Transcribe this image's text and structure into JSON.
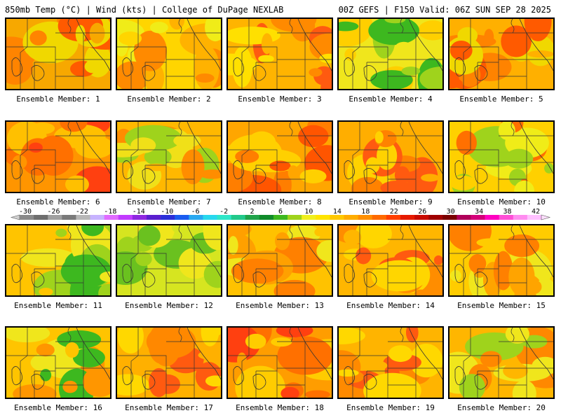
{
  "header": {
    "left_title": "850mb Temp (°C) | Wind (kts) | College of DuPage NEXLAB",
    "right_title": "00Z GEFS | F150 Valid: 06Z SUN SEP 28 2025"
  },
  "colorbar": {
    "tick_labels": [
      "-30",
      "-26",
      "-22",
      "-18",
      "-14",
      "-10",
      "-6",
      "-2",
      "2",
      "6",
      "10",
      "14",
      "18",
      "22",
      "26",
      "30",
      "34",
      "38",
      "42"
    ],
    "colors": [
      "#8a8a8a",
      "#6e6e6e",
      "#a0a0a0",
      "#7a7a7a",
      "#b7b7b7",
      "#c7b3ff",
      "#e06bff",
      "#c23bff",
      "#8f28e0",
      "#5a1fcf",
      "#2b2fd9",
      "#1a5cf0",
      "#29a8f0",
      "#28d8ee",
      "#2ee6c8",
      "#22c98a",
      "#1fa34a",
      "#108b2a",
      "#3db81f",
      "#9fd31c",
      "#f0ef1e",
      "#ffe400",
      "#ffc800",
      "#ffad00",
      "#ff8f00",
      "#ff6a00",
      "#ff3f00",
      "#e61a00",
      "#c80a00",
      "#a00000",
      "#7a0000",
      "#b0005a",
      "#d4007a",
      "#ff00c0",
      "#ff4fd6",
      "#ff8cf0",
      "#ffc0ff"
    ]
  },
  "panels": [
    {
      "label": "Ensemble Member: 1",
      "palette": [
        "#f7a800",
        "#ff8400",
        "#f0d800",
        "#ff5a00"
      ]
    },
    {
      "label": "Ensemble Member: 2",
      "palette": [
        "#ffd500",
        "#ffb200",
        "#f0ec18",
        "#ff8a00"
      ]
    },
    {
      "label": "Ensemble Member: 3",
      "palette": [
        "#ffb400",
        "#ff8a00",
        "#ffe000",
        "#ff5a10"
      ]
    },
    {
      "label": "Ensemble Member: 4",
      "palette": [
        "#f0e61c",
        "#ffcf00",
        "#9fd31c",
        "#3db81f"
      ]
    },
    {
      "label": "Ensemble Member: 5",
      "palette": [
        "#ffb000",
        "#ff8300",
        "#ff5a00",
        "#f0d800"
      ]
    },
    {
      "label": "Ensemble Member: 6",
      "palette": [
        "#ff9500",
        "#ff7000",
        "#ffc000",
        "#ff4010"
      ]
    },
    {
      "label": "Ensemble Member: 7",
      "palette": [
        "#ffb800",
        "#ff8d00",
        "#f0e018",
        "#9fd31c"
      ]
    },
    {
      "label": "Ensemble Member: 8",
      "palette": [
        "#ffa600",
        "#ff7e00",
        "#ffd000",
        "#ff5500"
      ]
    },
    {
      "label": "Ensemble Member: 9",
      "palette": [
        "#ffae00",
        "#ff8200",
        "#ffd200",
        "#ff5a10"
      ]
    },
    {
      "label": "Ensemble Member: 10",
      "palette": [
        "#ffd000",
        "#f0ec18",
        "#9fd31c",
        "#ff7000"
      ]
    },
    {
      "label": "Ensemble Member: 11",
      "palette": [
        "#ffc400",
        "#f0e61c",
        "#9fd31c",
        "#3db81f"
      ]
    },
    {
      "label": "Ensemble Member: 12",
      "palette": [
        "#d6e520",
        "#9fd31c",
        "#6ac11f",
        "#f0e61c"
      ]
    },
    {
      "label": "Ensemble Member: 13",
      "palette": [
        "#ffc200",
        "#ffa000",
        "#ff8000",
        "#f0e61c"
      ]
    },
    {
      "label": "Ensemble Member: 14",
      "palette": [
        "#ffb600",
        "#ff8d00",
        "#ff5a10",
        "#ffd600"
      ]
    },
    {
      "label": "Ensemble Member: 15",
      "palette": [
        "#ffcc00",
        "#f0e61c",
        "#ffa400",
        "#ff8000"
      ]
    },
    {
      "label": "Ensemble Member: 16",
      "palette": [
        "#ffc400",
        "#f0e61c",
        "#ff9600",
        "#3db81f"
      ]
    },
    {
      "label": "Ensemble Member: 17",
      "palette": [
        "#ffb000",
        "#ff8800",
        "#ffd800",
        "#ff5a10"
      ]
    },
    {
      "label": "Ensemble Member: 18",
      "palette": [
        "#ff9d00",
        "#ff7000",
        "#ffcc00",
        "#ff4010"
      ]
    },
    {
      "label": "Ensemble Member: 19",
      "palette": [
        "#ffb400",
        "#ff8a00",
        "#ffd800",
        "#ff5a10"
      ]
    },
    {
      "label": "Ensemble Member: 20",
      "palette": [
        "#ffb600",
        "#ff8800",
        "#f0e61c",
        "#9fd31c"
      ]
    }
  ]
}
